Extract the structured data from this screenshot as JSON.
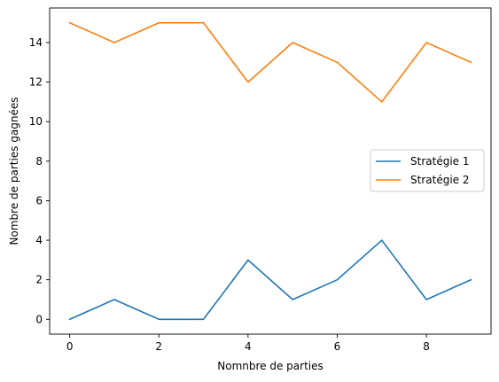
{
  "chart_data": {
    "type": "line",
    "title": "",
    "xlabel": "Nomnbre de parties",
    "ylabel": "Nombre de parties gagnées",
    "x": [
      0,
      1,
      2,
      3,
      4,
      5,
      6,
      7,
      8,
      9
    ],
    "xlim": [
      -0.45,
      9.45
    ],
    "ylim": [
      -0.75,
      15.75
    ],
    "xticks": [
      0,
      2,
      4,
      6,
      8
    ],
    "yticks": [
      0,
      2,
      4,
      6,
      8,
      10,
      12,
      14
    ],
    "grid": false,
    "legend_position": "center-right",
    "series": [
      {
        "name": "Stratégie 1",
        "color": "#1f77b4",
        "values": [
          0,
          1,
          0,
          0,
          3,
          1,
          2,
          4,
          1,
          2
        ]
      },
      {
        "name": "Stratégie 2",
        "color": "#ff7f0e",
        "values": [
          15,
          14,
          15,
          15,
          12,
          14,
          13,
          11,
          14,
          13
        ]
      }
    ]
  }
}
